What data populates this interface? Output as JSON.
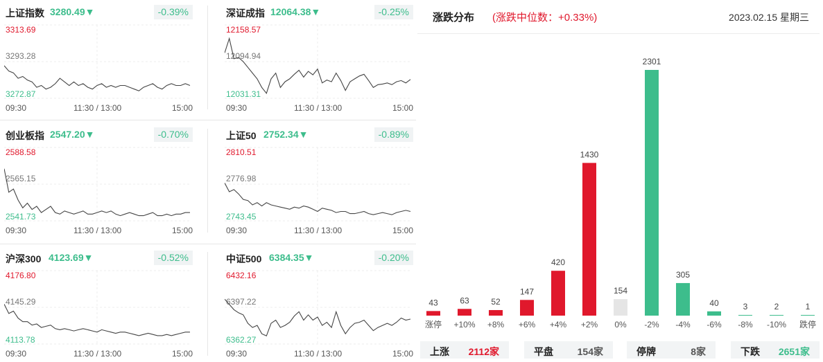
{
  "indices": [
    {
      "name": "上证指数",
      "price": "3280.49",
      "arrow": "▼",
      "change": "-0.39%",
      "high": "3313.69",
      "mid": "3293.28",
      "low": "3272.87"
    },
    {
      "name": "深证成指",
      "price": "12064.38",
      "arrow": "▼",
      "change": "-0.25%",
      "high": "12158.57",
      "mid": "12094.94",
      "low": "12031.31"
    },
    {
      "name": "创业板指",
      "price": "2547.20",
      "arrow": "▼",
      "change": "-0.70%",
      "high": "2588.58",
      "mid": "2565.15",
      "low": "2541.73"
    },
    {
      "name": "上证50",
      "price": "2752.34",
      "arrow": "▼",
      "change": "-0.89%",
      "high": "2810.51",
      "mid": "2776.98",
      "low": "2743.45"
    },
    {
      "name": "沪深300",
      "price": "4123.69",
      "arrow": "▼",
      "change": "-0.52%",
      "high": "4176.80",
      "mid": "4145.29",
      "low": "4113.78"
    },
    {
      "name": "中证500",
      "price": "6384.35",
      "arrow": "▼",
      "change": "-0.20%",
      "high": "6432.16",
      "mid": "6397.22",
      "low": "6362.27"
    }
  ],
  "time_axis": {
    "start": "09:30",
    "mid": "11:30 / 13:00",
    "end": "15:00"
  },
  "distribution": {
    "title": "涨跌分布",
    "median": "(涨跌中位数：+0.33%)",
    "date": "2023.02.15 星期三"
  },
  "colors": {
    "up": "#e0182c",
    "down": "#3dbd8c",
    "flat": "#e5e5e5"
  },
  "chart_data": [
    {
      "type": "line",
      "series": [
        {
          "values": [
            3291,
            3288,
            3287,
            3284,
            3285,
            3283,
            3282,
            3279,
            3280,
            3278,
            3279,
            3281,
            3284,
            3282,
            3280,
            3282,
            3280,
            3281,
            3279,
            3278,
            3280,
            3281,
            3279,
            3280,
            3279,
            3280,
            3280,
            3279,
            3278,
            3277,
            3279,
            3280,
            3281,
            3279,
            3278,
            3280,
            3281,
            3280,
            3280,
            3281,
            3280
          ]
        }
      ]
    },
    {
      "type": "line",
      "series": [
        {
          "values": [
            12110,
            12135,
            12100,
            12102,
            12095,
            12085,
            12075,
            12065,
            12050,
            12040,
            12065,
            12075,
            12050,
            12060,
            12065,
            12073,
            12080,
            12068,
            12078,
            12072,
            12082,
            12058,
            12063,
            12060,
            12075,
            12062,
            12045,
            12060,
            12065,
            12070,
            12073,
            12062,
            12050,
            12055,
            12056,
            12058,
            12055,
            12060,
            12062,
            12058,
            12064
          ]
        }
      ]
    },
    {
      "type": "line",
      "series": [
        {
          "values": [
            2575,
            2560,
            2562,
            2555,
            2550,
            2553,
            2549,
            2551,
            2547,
            2549,
            2551,
            2547,
            2546,
            2548,
            2547,
            2546,
            2547,
            2548,
            2546,
            2546,
            2547,
            2548,
            2547,
            2548,
            2546,
            2545,
            2546,
            2547,
            2546,
            2545,
            2545,
            2546,
            2547,
            2545,
            2545,
            2546,
            2545,
            2546,
            2546,
            2547,
            2547
          ]
        }
      ]
    },
    {
      "type": "line",
      "series": [
        {
          "values": [
            2778,
            2770,
            2772,
            2768,
            2763,
            2762,
            2758,
            2760,
            2757,
            2760,
            2758,
            2757,
            2756,
            2755,
            2754,
            2756,
            2755,
            2757,
            2756,
            2754,
            2752,
            2755,
            2754,
            2753,
            2751,
            2752,
            2752,
            2750,
            2750,
            2751,
            2752,
            2750,
            2749,
            2750,
            2751,
            2750,
            2749,
            2751,
            2752,
            2753,
            2752
          ]
        }
      ]
    },
    {
      "type": "line",
      "series": [
        {
          "values": [
            4148,
            4140,
            4142,
            4136,
            4133,
            4133,
            4130,
            4131,
            4128,
            4129,
            4130,
            4127,
            4126,
            4127,
            4126,
            4125,
            4126,
            4127,
            4126,
            4125,
            4124,
            4126,
            4125,
            4124,
            4123,
            4124,
            4124,
            4123,
            4122,
            4121,
            4122,
            4123,
            4122,
            4121,
            4121,
            4122,
            4121,
            4122,
            4123,
            4124,
            4124
          ]
        }
      ]
    },
    {
      "type": "line",
      "series": [
        {
          "values": [
            6405,
            6400,
            6395,
            6392,
            6390,
            6382,
            6378,
            6380,
            6372,
            6370,
            6382,
            6385,
            6378,
            6380,
            6383,
            6389,
            6393,
            6385,
            6390,
            6385,
            6388,
            6380,
            6383,
            6378,
            6393,
            6380,
            6372,
            6378,
            6382,
            6383,
            6385,
            6380,
            6375,
            6378,
            6380,
            6382,
            6380,
            6383,
            6387,
            6385,
            6386
          ]
        }
      ]
    },
    {
      "type": "bar",
      "categories": [
        "涨停",
        "+10%",
        "+8%",
        "+6%",
        "+4%",
        "+2%",
        "0%",
        "-2%",
        "-4%",
        "-6%",
        "-8%",
        "-10%",
        "跌停"
      ],
      "values": [
        43,
        63,
        52,
        147,
        420,
        1430,
        154,
        2301,
        305,
        40,
        3,
        2,
        1
      ],
      "color_groups": [
        "up",
        "up",
        "up",
        "up",
        "up",
        "up",
        "flat",
        "down",
        "down",
        "down",
        "down",
        "down",
        "down"
      ],
      "ylim": [
        0,
        2301
      ]
    }
  ],
  "summary": [
    {
      "label": "上涨",
      "value": "2112家",
      "color": "#e0182c"
    },
    {
      "label": "平盘",
      "value": "154家",
      "color": "#555555"
    },
    {
      "label": "停牌",
      "value": "8家",
      "color": "#555555"
    },
    {
      "label": "下跌",
      "value": "2651家",
      "color": "#3dbd8c"
    }
  ]
}
